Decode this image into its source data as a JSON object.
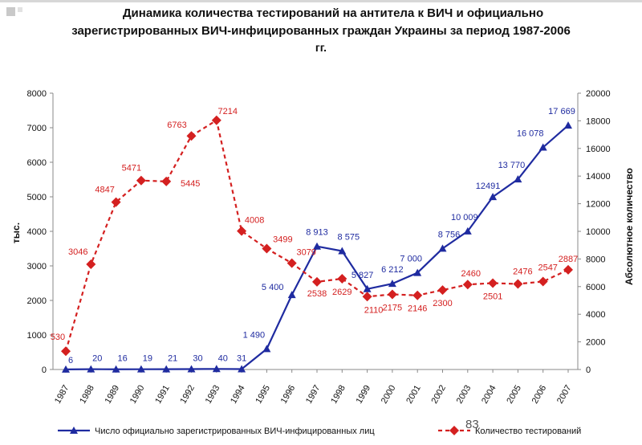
{
  "title": {
    "line1": "Динамика количества тестирований на антитела к ВИЧ и официально",
    "line2": "зарегистрированных ВИЧ-инфицированных граждан Украины за период 1987-2006",
    "line3": "гг."
  },
  "slide_number": "83",
  "colors": {
    "blue_series": "#1f2ba0",
    "red_series": "#d42020"
  },
  "chart_data": {
    "type": "line",
    "categories": [
      "1987",
      "1988",
      "1989",
      "1990",
      "1991",
      "1992",
      "1993",
      "1994",
      "1995",
      "1996",
      "1997",
      "1998",
      "1999",
      "2000",
      "2001",
      "2002",
      "2003",
      "2004",
      "2005",
      "2006",
      "2007"
    ],
    "left_axis": {
      "label": "тыс.",
      "ylim": [
        0,
        8000
      ],
      "ticks": [
        0,
        1000,
        2000,
        3000,
        4000,
        5000,
        6000,
        7000,
        8000
      ]
    },
    "right_axis": {
      "label": "Абсолютное количество",
      "ylim": [
        0,
        20000
      ],
      "ticks": [
        0,
        2000,
        4000,
        6000,
        8000,
        10000,
        12000,
        14000,
        16000,
        18000,
        20000
      ]
    },
    "series": [
      {
        "name": "Число официально зарегистрированных ВИЧ-инфицированных лиц",
        "legend_text": "Число официально зарегистрированных ВИЧ-инфицированных лиц",
        "axis": "right",
        "color": "#1f2ba0",
        "marker": "triangle",
        "style": "solid",
        "values": [
          6,
          20,
          16,
          19,
          21,
          30,
          40,
          31,
          1490,
          5400,
          8913,
          8575,
          5827,
          6212,
          7000,
          8756,
          10009,
          12491,
          13770,
          16078,
          17669
        ],
        "labels": [
          "6",
          "20",
          "16",
          "19",
          "21",
          "30",
          "40",
          "31",
          "1 490",
          "5 400",
          "8 913",
          "8 575",
          "5 827",
          "6 212",
          "7 000",
          "8 756",
          "10 009",
          "12491",
          "13 770",
          "16 078",
          "17 669"
        ]
      },
      {
        "name": "Количество тестирований",
        "legend_text": "Количество тестирований",
        "axis": "left",
        "color": "#d42020",
        "marker": "diamond",
        "style": "dashed",
        "values": [
          530,
          3046,
          4847,
          5471,
          5445,
          6763,
          7214,
          4008,
          3499,
          3079,
          2538,
          2629,
          2110,
          2175,
          2146,
          2300,
          2460,
          2501,
          2476,
          2547,
          2887
        ],
        "labels": [
          "530",
          "3046",
          "4847",
          "5471",
          "5445",
          "6763",
          "7214",
          "4008",
          "3499",
          "3079",
          "2538",
          "2629",
          "2110",
          "2175",
          "2146",
          "2300",
          "2460",
          "2501",
          "2476",
          "2547",
          "2887"
        ]
      }
    ],
    "grid": false,
    "legend_position": "bottom"
  }
}
